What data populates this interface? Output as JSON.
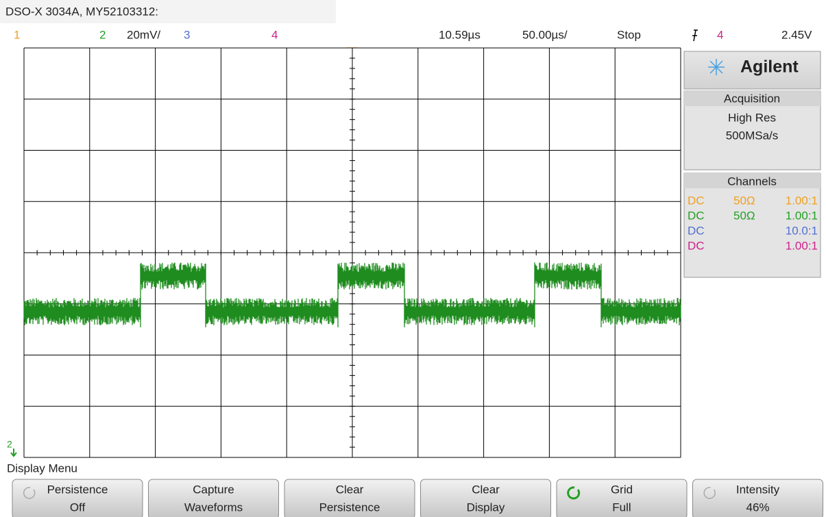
{
  "header": {
    "title": "DSO-X 3034A, MY52103312:",
    "channels": [
      "1",
      "2",
      "3",
      "4"
    ],
    "ch2_scale": "20mV/",
    "time_delay": "10.59µs",
    "time_scale": "50.00µs/",
    "run_state": "Stop",
    "trigger_channel": "4",
    "trigger_level": "2.45V"
  },
  "side_panel": {
    "brand": "Agilent",
    "acquisition": {
      "title": "Acquisition",
      "mode": "High Res",
      "rate": "500MSa/s"
    },
    "channels": {
      "title": "Channels",
      "rows": [
        [
          "DC",
          "50Ω",
          "1.00:1"
        ],
        [
          "DC",
          "50Ω",
          "1.00:1"
        ],
        [
          "DC",
          "",
          "10.0:1"
        ],
        [
          "DC",
          "",
          "1.00:1"
        ]
      ]
    }
  },
  "ground_marker": "2",
  "menu": {
    "title": "Display Menu",
    "buttons": [
      [
        "Persistence",
        "Off"
      ],
      [
        "Capture",
        "Waveforms"
      ],
      [
        "Clear",
        "Persistence"
      ],
      [
        "Clear",
        "Display"
      ],
      [
        "Grid",
        "Full"
      ],
      [
        "Intensity",
        "46%"
      ]
    ]
  }
}
